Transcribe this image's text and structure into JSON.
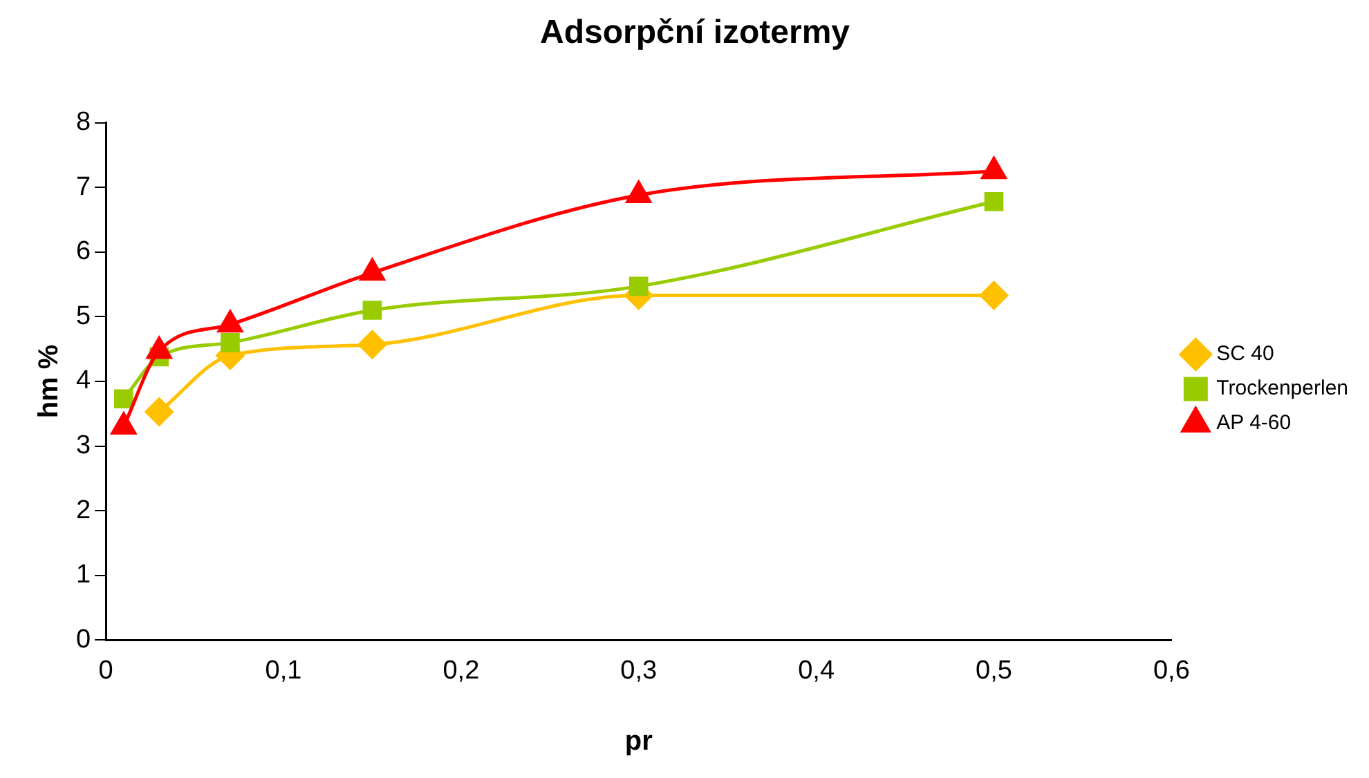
{
  "chart_data": {
    "type": "line",
    "title": "Adsorpční izotermy",
    "xlabel": "pr",
    "ylabel": "hm %",
    "xlim": [
      0,
      0.6
    ],
    "xticks": [
      0,
      {
        "value": 0.1,
        "label": "0,1"
      },
      {
        "value": 0.2,
        "label": "0,2"
      },
      {
        "value": 0.3,
        "label": "0,3"
      },
      {
        "value": 0.4,
        "label": "0,4"
      },
      {
        "value": 0.5,
        "label": "0,5"
      },
      {
        "value": 0.6,
        "label": "0,6"
      }
    ],
    "ylim": [
      0,
      8
    ],
    "yticks": [
      0,
      1,
      2,
      3,
      4,
      5,
      6,
      7,
      8
    ],
    "grid": false,
    "legend": "right",
    "series": [
      {
        "name": "SC 40",
        "color": "#ffc000",
        "marker": "diamond",
        "x": [
          0.03,
          0.07,
          0.15,
          0.3,
          0.5
        ],
        "values": [
          3.53,
          4.4,
          4.57,
          5.33,
          5.33
        ]
      },
      {
        "name": "Trockenperlen",
        "color": "#99cc00",
        "marker": "square",
        "x": [
          0.01,
          0.03,
          0.07,
          0.15,
          0.3,
          0.5
        ],
        "values": [
          3.73,
          4.38,
          4.6,
          5.1,
          5.47,
          6.78
        ]
      },
      {
        "name": "AP 4-60",
        "color": "#ff0000",
        "marker": "triangle",
        "x": [
          0.01,
          0.03,
          0.07,
          0.15,
          0.3,
          0.5
        ],
        "values": [
          3.3,
          4.47,
          4.88,
          5.68,
          6.88,
          7.25
        ]
      }
    ]
  }
}
